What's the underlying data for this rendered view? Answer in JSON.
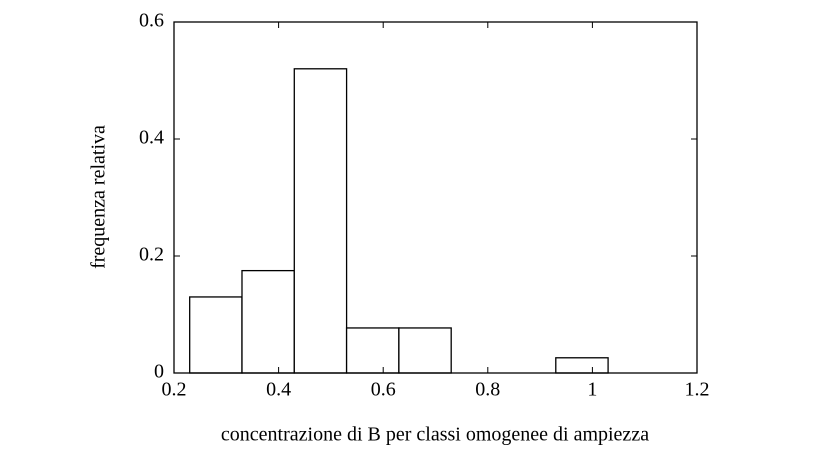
{
  "chart_data": {
    "type": "histogram",
    "xlabel": "concentrazione di B per classi omogenee di ampiezza",
    "ylabel": "frequenza relativa",
    "bins": [
      0.23,
      0.33,
      0.43,
      0.53,
      0.63,
      0.73,
      0.83,
      0.93,
      1.03
    ],
    "values": [
      0.13,
      0.175,
      0.52,
      0.077,
      0.077,
      0,
      0,
      0.026
    ],
    "color": "#ffffff",
    "edgecolor": "#000000",
    "xlim": [
      0.2,
      1.2
    ],
    "ylim": [
      0,
      0.6
    ],
    "xticks": [
      0.2,
      0.4,
      0.6,
      0.8,
      1,
      1.2
    ],
    "yticks": [
      0,
      0.2,
      0.4,
      0.6
    ]
  }
}
